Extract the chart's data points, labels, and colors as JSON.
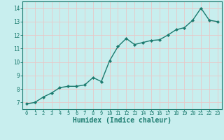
{
  "x": [
    0,
    1,
    2,
    3,
    4,
    5,
    6,
    7,
    8,
    9,
    10,
    11,
    12,
    13,
    14,
    15,
    16,
    17,
    18,
    19,
    20,
    21,
    22,
    23
  ],
  "y": [
    6.9,
    7.0,
    7.4,
    7.7,
    8.1,
    8.2,
    8.2,
    8.3,
    8.85,
    8.55,
    10.1,
    11.15,
    11.75,
    11.3,
    11.45,
    11.6,
    11.65,
    12.0,
    12.4,
    12.55,
    13.1,
    14.0,
    13.1,
    13.0
  ],
  "line_color": "#1a7a6e",
  "marker": "D",
  "marker_size": 2.2,
  "linewidth": 1.0,
  "xlabel": "Humidex (Indice chaleur)",
  "xlabel_fontsize": 7,
  "ylabel": "",
  "title": "",
  "xlim": [
    -0.5,
    23.5
  ],
  "ylim": [
    6.5,
    14.5
  ],
  "yticks": [
    7,
    8,
    9,
    10,
    11,
    12,
    13,
    14
  ],
  "xticks": [
    0,
    1,
    2,
    3,
    4,
    5,
    6,
    7,
    8,
    9,
    10,
    11,
    12,
    13,
    14,
    15,
    16,
    17,
    18,
    19,
    20,
    21,
    22,
    23
  ],
  "bg_color": "#c8eeee",
  "grid_color": "#e8c8c8",
  "tick_color": "#1a7a6e",
  "spine_color": "#1a7a6e",
  "xlabel_color": "#1a7a6e"
}
